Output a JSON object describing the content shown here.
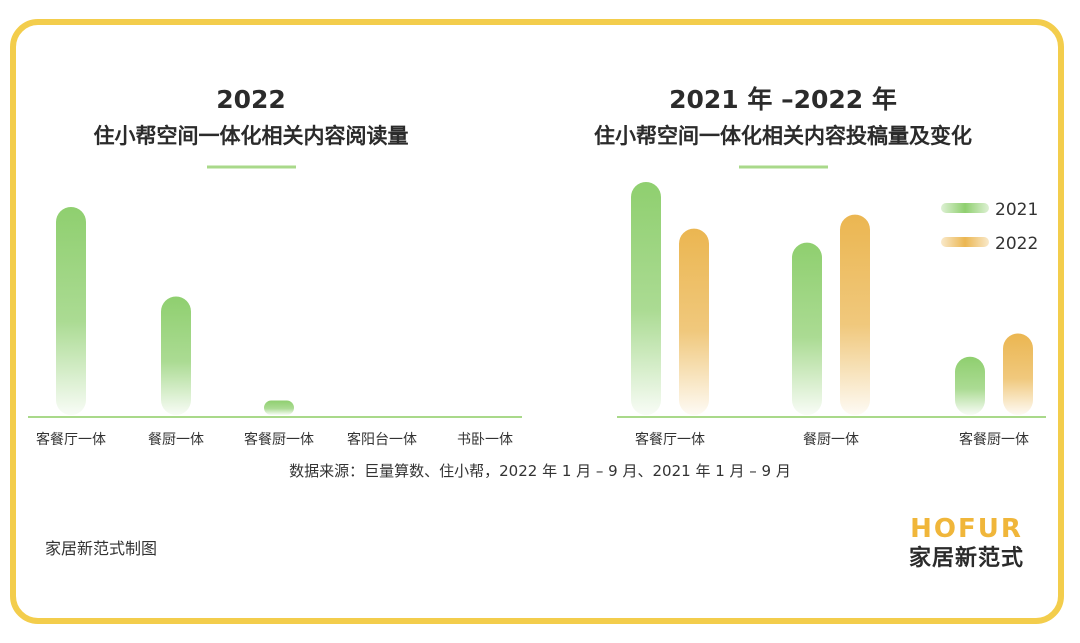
{
  "colors": {
    "frame": "#f3cd4c",
    "green": "#8fcf6f",
    "orange": "#ebb651",
    "axis": "#a9d98a",
    "brand_accent": "#f0b63a"
  },
  "chart_data": [
    {
      "type": "bar",
      "title_year": "2022",
      "title": "住小帮空间一体化相关内容阅读量",
      "categories": [
        "客餐厅一体",
        "餐厨一体",
        "客餐厨一体",
        "客阳台一体",
        "书卧一体"
      ],
      "series": [
        {
          "color": "#8fcf6f",
          "values": [
            100,
            57,
            7,
            0,
            0
          ]
        }
      ],
      "ylim": [
        0,
        100
      ],
      "grid": false
    },
    {
      "type": "bar",
      "title_year": "2021 年 –2022 年",
      "title": "住小帮空间一体化相关内容投稿量及变化",
      "categories": [
        "客餐厅一体",
        "餐厨一体",
        "客餐厨一体"
      ],
      "series": [
        {
          "name": "2021",
          "color": "#8fcf6f",
          "values": [
            100,
            74,
            25
          ]
        },
        {
          "name": "2022",
          "color": "#ebb651",
          "values": [
            80,
            86,
            35
          ]
        }
      ],
      "ylim": [
        0,
        100
      ],
      "legend": "top-right",
      "grid": false
    }
  ],
  "footer": {
    "source": "数据来源：巨量算数、住小帮，2022 年 1 月 – 9 月、2021 年 1 月 – 9 月",
    "caption": "家居新范式制图"
  },
  "brand": {
    "name_en": "HOFUR",
    "name_cn": "家居新范式"
  }
}
